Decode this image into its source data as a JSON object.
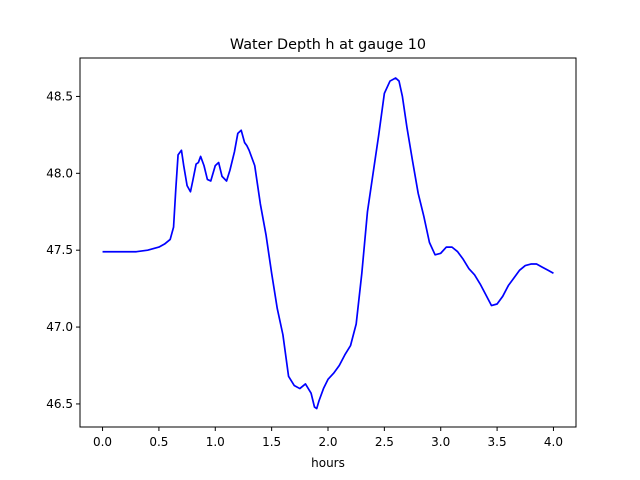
{
  "chart_data": {
    "type": "line",
    "title": "Water Depth h at gauge 10",
    "xlabel": "hours",
    "ylabel": "",
    "xlim": [
      -0.2,
      4.2
    ],
    "ylim": [
      46.35,
      48.75
    ],
    "xticks": [
      0.0,
      0.5,
      1.0,
      1.5,
      2.0,
      2.5,
      3.0,
      3.5,
      4.0
    ],
    "xtick_labels": [
      "0.0",
      "0.5",
      "1.0",
      "1.5",
      "2.0",
      "2.5",
      "3.0",
      "3.5",
      "4.0"
    ],
    "yticks": [
      46.5,
      47.0,
      47.5,
      48.0,
      48.5
    ],
    "ytick_labels": [
      "46.5",
      "47.0",
      "47.5",
      "48.0",
      "48.5"
    ],
    "grid": false,
    "series": [
      {
        "color": "#0000ff",
        "x": [
          0.0,
          0.1,
          0.2,
          0.3,
          0.4,
          0.5,
          0.55,
          0.6,
          0.63,
          0.65,
          0.67,
          0.7,
          0.72,
          0.75,
          0.78,
          0.8,
          0.83,
          0.85,
          0.87,
          0.9,
          0.93,
          0.96,
          1.0,
          1.03,
          1.06,
          1.1,
          1.13,
          1.17,
          1.2,
          1.23,
          1.26,
          1.28,
          1.3,
          1.35,
          1.4,
          1.45,
          1.5,
          1.55,
          1.6,
          1.65,
          1.7,
          1.75,
          1.8,
          1.85,
          1.88,
          1.9,
          1.92,
          1.96,
          2.0,
          2.05,
          2.1,
          2.15,
          2.2,
          2.25,
          2.3,
          2.35,
          2.4,
          2.45,
          2.5,
          2.55,
          2.6,
          2.63,
          2.66,
          2.7,
          2.75,
          2.8,
          2.85,
          2.9,
          2.95,
          3.0,
          3.05,
          3.1,
          3.15,
          3.2,
          3.25,
          3.3,
          3.35,
          3.4,
          3.45,
          3.5,
          3.55,
          3.6,
          3.65,
          3.7,
          3.75,
          3.8,
          3.85,
          3.9,
          3.95,
          4.0
        ],
        "y": [
          47.49,
          47.49,
          47.49,
          47.49,
          47.5,
          47.52,
          47.54,
          47.57,
          47.65,
          47.9,
          48.12,
          48.15,
          48.05,
          47.92,
          47.88,
          47.95,
          48.06,
          48.07,
          48.11,
          48.05,
          47.96,
          47.95,
          48.05,
          48.07,
          47.98,
          47.95,
          48.02,
          48.14,
          48.26,
          48.28,
          48.2,
          48.18,
          48.15,
          48.05,
          47.8,
          47.6,
          47.35,
          47.12,
          46.95,
          46.68,
          46.62,
          46.6,
          46.63,
          46.57,
          46.48,
          46.47,
          46.52,
          46.6,
          46.66,
          46.7,
          46.75,
          46.82,
          46.88,
          47.02,
          47.35,
          47.75,
          48.0,
          48.25,
          48.52,
          48.6,
          48.62,
          48.6,
          48.5,
          48.3,
          48.08,
          47.87,
          47.72,
          47.55,
          47.47,
          47.48,
          47.52,
          47.52,
          47.49,
          47.44,
          47.38,
          47.34,
          47.28,
          47.21,
          47.14,
          47.15,
          47.2,
          47.27,
          47.32,
          47.37,
          47.4,
          47.41,
          47.41,
          47.39,
          47.37,
          47.35
        ]
      }
    ]
  }
}
